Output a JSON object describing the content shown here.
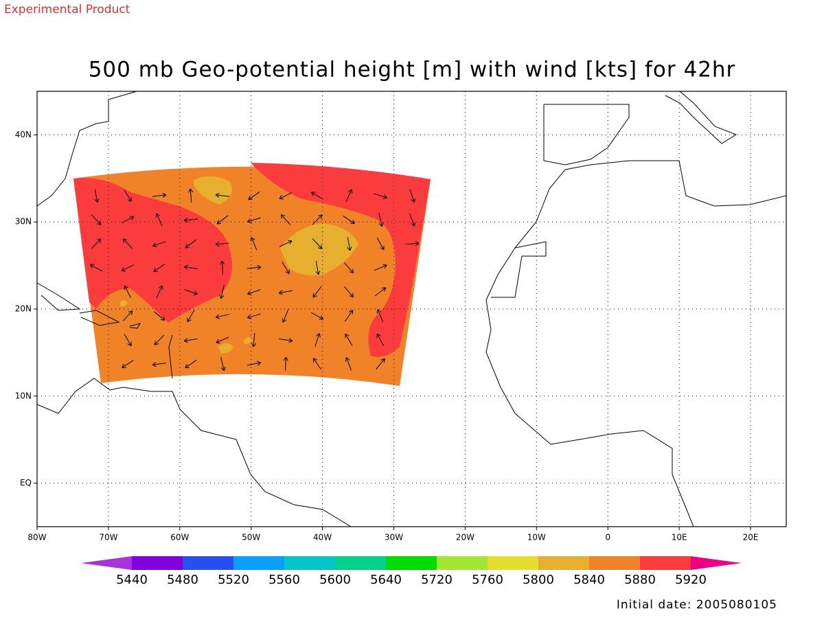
{
  "header": {
    "label": "Experimental Product"
  },
  "map": {
    "title": "500 mb Geo-potential height [m] with wind [kts] for 42hr",
    "xlim": [
      -80,
      25
    ],
    "ylim": [
      -5,
      45
    ],
    "lon_ticks": [
      {
        "value": -80,
        "label": "80W"
      },
      {
        "value": -70,
        "label": "70W"
      },
      {
        "value": -60,
        "label": "60W"
      },
      {
        "value": -50,
        "label": "50W"
      },
      {
        "value": -40,
        "label": "40W"
      },
      {
        "value": -30,
        "label": "30W"
      },
      {
        "value": -20,
        "label": "20W"
      },
      {
        "value": -10,
        "label": "10W"
      },
      0,
      {
        "value": 10,
        "label": "10E"
      },
      {
        "value": 20,
        "label": "20E"
      }
    ],
    "lat_ticks": [
      {
        "value": 40,
        "label": "40N"
      },
      {
        "value": 30,
        "label": "30N"
      },
      {
        "value": 20,
        "label": "20N"
      },
      {
        "value": 10,
        "label": "10N"
      },
      {
        "value": 0,
        "label": "EQ"
      }
    ],
    "colorbar": {
      "levels": [
        5440,
        5480,
        5520,
        5560,
        5600,
        5640,
        5720,
        5760,
        5800,
        5840,
        5880,
        5920
      ],
      "colors": [
        "#a832dc",
        "#8200dc",
        "#2850f0",
        "#0aa0ff",
        "#00c8c8",
        "#00d28c",
        "#00dc00",
        "#a0e632",
        "#e6dc32",
        "#e6af2d",
        "#f08228",
        "#fa3c3c",
        "#f00082"
      ]
    }
  },
  "footer": {
    "label": "Initial date: 2005080105"
  }
}
